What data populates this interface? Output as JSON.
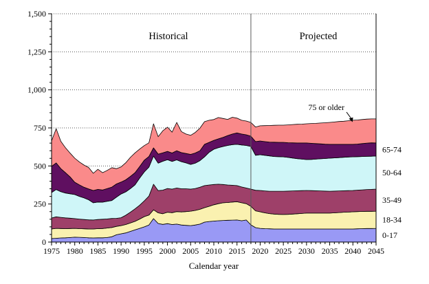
{
  "chart_data": {
    "type": "area",
    "stacked": true,
    "title": "",
    "xlabel": "Calendar year",
    "ylabel": "",
    "ylim": [
      0,
      1500
    ],
    "y_major_step": 250,
    "y_minor_step": 50,
    "grid": "dotted-horizontal",
    "y_tick_labels": [
      "0",
      "250",
      "500",
      "750",
      "1,000",
      "1,250",
      "1,500"
    ],
    "x_tick_labels": [
      "1975",
      "1980",
      "1985",
      "1990",
      "1995",
      "2000",
      "2005",
      "2010",
      "2015",
      "2020",
      "2025",
      "2030",
      "2035",
      "2040",
      "2045"
    ],
    "x_start": 1975,
    "x_end": 2045,
    "divider_year": 2018,
    "region_labels": {
      "historical": "Historical",
      "projected": "Projected"
    },
    "callout": {
      "text": "75 or older"
    },
    "right_band_labels": [
      "65-74",
      "50-64",
      "35-49",
      "18-34",
      "0-17"
    ],
    "colors": {
      "area_border": "#000000",
      "gridline": "#555555",
      "divider": "#595959",
      "axis": "#000000"
    },
    "years": [
      1975,
      1976,
      1977,
      1978,
      1979,
      1980,
      1981,
      1982,
      1983,
      1984,
      1985,
      1986,
      1987,
      1988,
      1989,
      1990,
      1991,
      1992,
      1993,
      1994,
      1995,
      1996,
      1997,
      1998,
      1999,
      2000,
      2001,
      2002,
      2003,
      2004,
      2005,
      2006,
      2007,
      2008,
      2009,
      2010,
      2011,
      2012,
      2013,
      2014,
      2015,
      2016,
      2017,
      2018,
      2019,
      2020,
      2021,
      2022,
      2023,
      2024,
      2025,
      2026,
      2027,
      2028,
      2029,
      2030,
      2031,
      2032,
      2033,
      2034,
      2035,
      2036,
      2037,
      2038,
      2039,
      2040,
      2041,
      2042,
      2043,
      2044,
      2045
    ],
    "series": [
      {
        "name": "0-17",
        "color": "#9999F5",
        "values": [
          23,
          25,
          27,
          28,
          30,
          32,
          31,
          30,
          28,
          27,
          28,
          28,
          30,
          35,
          48,
          54,
          60,
          70,
          80,
          90,
          100,
          112,
          154,
          122,
          116,
          121,
          115,
          118,
          112,
          110,
          108,
          112,
          118,
          131,
          135,
          138,
          140,
          142,
          143,
          144,
          145,
          140,
          145,
          113,
          95,
          90,
          88,
          87,
          86,
          86,
          86,
          86,
          86,
          86,
          86,
          86,
          86,
          86,
          86,
          86,
          86,
          86,
          86,
          86,
          86,
          86,
          87,
          88,
          89,
          89,
          90
        ]
      },
      {
        "name": "18-34",
        "color": "#FAF1B0",
        "values": [
          63,
          65,
          62,
          60,
          59,
          58,
          57,
          57,
          58,
          59,
          60,
          61,
          62,
          61,
          55,
          54,
          55,
          55,
          56,
          61,
          67,
          65,
          58,
          70,
          70,
          75,
          78,
          82,
          86,
          90,
          95,
          96,
          97,
          95,
          100,
          107,
          112,
          116,
          117,
          119,
          120,
          118,
          107,
          122,
          110,
          109,
          104,
          100,
          98,
          96,
          95,
          96,
          98,
          100,
          102,
          104,
          104,
          104,
          104,
          104,
          104,
          106,
          108,
          110,
          111,
          113,
          113,
          113,
          113,
          113,
          113
        ]
      },
      {
        "name": "35-49",
        "color": "#9E4069",
        "values": [
          72,
          76,
          73,
          71,
          68,
          64,
          63,
          61,
          60,
          59,
          60,
          61,
          60,
          59,
          53,
          52,
          61,
          71,
          82,
          91,
          104,
          125,
          168,
          146,
          155,
          156,
          155,
          155,
          152,
          150,
          145,
          144,
          145,
          145,
          140,
          133,
          128,
          120,
          115,
          110,
          106,
          104,
          103,
          113,
          135,
          140,
          144,
          147,
          150,
          152,
          153,
          153,
          152,
          151,
          150,
          149,
          148,
          147,
          146,
          145,
          144,
          143,
          142,
          141,
          141,
          140,
          141,
          142,
          143,
          144,
          145
        ]
      },
      {
        "name": "50-64",
        "color": "#CFF6F8",
        "values": [
          167,
          179,
          169,
          163,
          160,
          158,
          149,
          142,
          132,
          113,
          115,
          112,
          116,
          118,
          139,
          156,
          154,
          155,
          158,
          178,
          190,
          190,
          185,
          180,
          190,
          189,
          182,
          185,
          178,
          170,
          162,
          166,
          175,
          189,
          215,
          232,
          240,
          250,
          260,
          267,
          271,
          276,
          280,
          280,
          230,
          235,
          234,
          232,
          228,
          227,
          226,
          221,
          216,
          211,
          207,
          203,
          205,
          208,
          211,
          214,
          217,
          218,
          219,
          220,
          221,
          221,
          220,
          219,
          218,
          218,
          217
        ]
      },
      {
        "name": "65-74",
        "color": "#5F0F60",
        "values": [
          172,
          175,
          151,
          134,
          111,
          81,
          76,
          70,
          71,
          81,
          83,
          80,
          83,
          88,
          87,
          78,
          79,
          80,
          80,
          76,
          77,
          70,
          54,
          60,
          55,
          55,
          55,
          60,
          60,
          62,
          66,
          67,
          65,
          82,
          65,
          58,
          58,
          60,
          65,
          70,
          75,
          72,
          70,
          68,
          90,
          90,
          90,
          91,
          94,
          94,
          95,
          97,
          100,
          103,
          106,
          109,
          106,
          102,
          98,
          94,
          91,
          89,
          87,
          85,
          83,
          82,
          83,
          85,
          87,
          88,
          86
        ]
      },
      {
        "name": "75 or older",
        "color": "#FA8A8A",
        "values": [
          167,
          225,
          180,
          164,
          156,
          158,
          150,
          146,
          141,
          113,
          132,
          114,
          120,
          128,
          100,
          100,
          112,
          125,
          130,
          115,
          96,
          90,
          158,
          114,
          145,
          159,
          137,
          186,
          138,
          128,
          125,
          135,
          148,
          149,
          145,
          137,
          140,
          124,
          106,
          110,
          97,
          90,
          90,
          90,
          96,
          100,
          105,
          109,
          111,
          113,
          113,
          117,
          120,
          123,
          124,
          126,
          130,
          133,
          137,
          141,
          144,
          147,
          150,
          152,
          155,
          158,
          158,
          158,
          158,
          157,
          158
        ]
      }
    ]
  }
}
